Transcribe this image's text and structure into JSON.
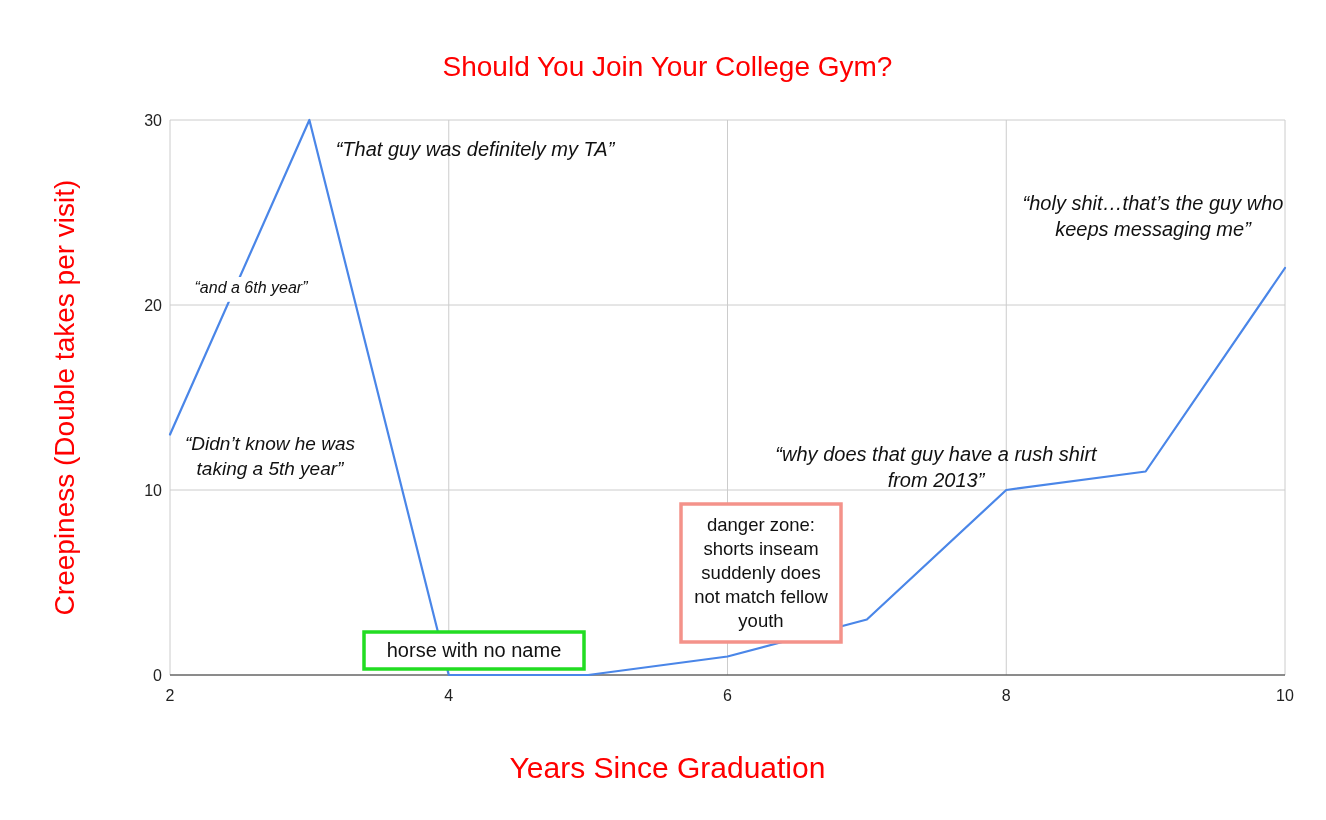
{
  "chart_data": {
    "type": "line",
    "title": "Should You Join Your College Gym?",
    "xlabel": "Years Since Graduation",
    "ylabel": "Creepiness (Double takes per visit)",
    "x": [
      2,
      3,
      4,
      5,
      6,
      7,
      8,
      9,
      10
    ],
    "series": [
      {
        "color": "#4a86e8",
        "values": [
          13,
          30,
          0,
          0,
          1,
          3,
          10,
          11,
          22
        ]
      }
    ],
    "xlim": [
      2,
      10
    ],
    "xticks": [
      2,
      4,
      6,
      8,
      10
    ],
    "ylim": [
      0,
      30
    ],
    "yticks": [
      0,
      10,
      20,
      30
    ],
    "grid": true,
    "marker": "none",
    "line_style": "solid",
    "annotations": [
      "“That guy was definitely my TA”",
      "“and a 6th year”",
      "“Didn’t know he was taking a 5th year”",
      "“holy shit…that’s the guy who keeps messaging me”",
      "“why does that guy have a rush shirt from 2013”",
      "danger zone: shorts inseam suddenly does not match fellow youth",
      "horse with no name"
    ]
  }
}
